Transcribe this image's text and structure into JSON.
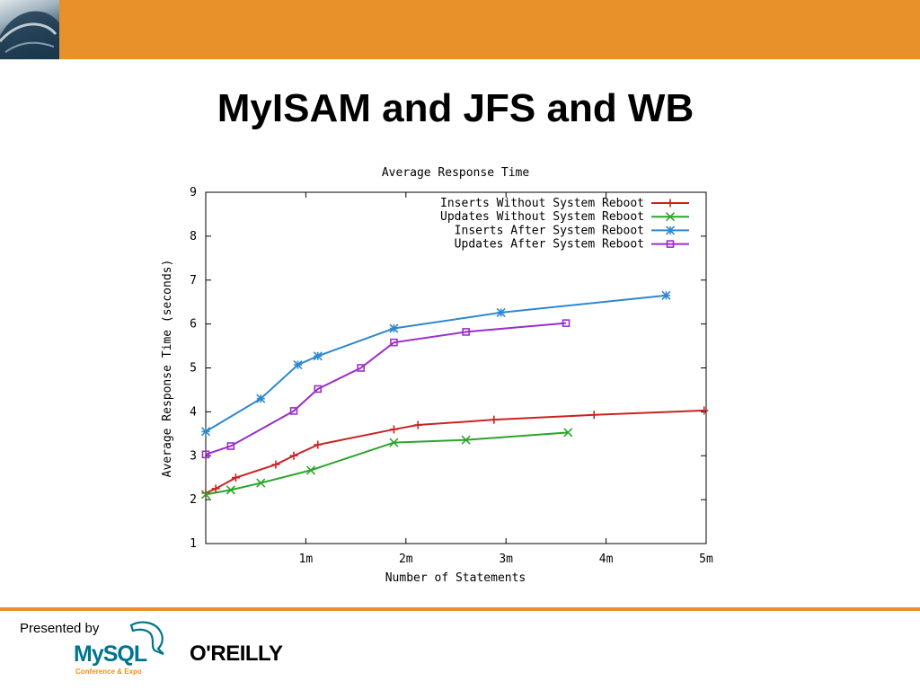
{
  "slide": {
    "title": "MyISAM and JFS and WB",
    "presented_by": "Presented by",
    "mysql_logo_text": "MySQL",
    "mysql_logo_sub": "Conference & Expo",
    "oreilly_logo_text": "O'REILLY"
  },
  "colors": {
    "banner": "#e8912b",
    "inserts_no_reboot": "#cc2222",
    "updates_no_reboot": "#2aa52a",
    "inserts_after_reboot": "#2f88cf",
    "updates_after_reboot": "#9a2fc9"
  },
  "chart_data": {
    "type": "line",
    "title": "Average Response Time",
    "xlabel": "Number of Statements",
    "ylabel": "Average Response Time (seconds)",
    "xlim": [
      0,
      5
    ],
    "ylim": [
      1,
      9
    ],
    "x_ticks": [
      1,
      2,
      3,
      4,
      5
    ],
    "x_tick_labels": [
      "1m",
      "2m",
      "3m",
      "4m",
      "5m"
    ],
    "y_ticks": [
      1,
      2,
      3,
      4,
      5,
      6,
      7,
      8,
      9
    ],
    "y_tick_labels": [
      "1",
      "2",
      "3",
      "4",
      "5",
      "6",
      "7",
      "8",
      "9"
    ],
    "grid": false,
    "legend_position": "top-right",
    "series": [
      {
        "name": "Inserts Without System Reboot",
        "color": "#cc2222",
        "marker": "plus",
        "x": [
          0.0,
          0.1,
          0.3,
          0.7,
          0.88,
          1.12,
          1.88,
          2.12,
          2.88,
          3.88,
          4.98
        ],
        "y": [
          2.15,
          2.25,
          2.5,
          2.8,
          3.0,
          3.25,
          3.6,
          3.7,
          3.82,
          3.93,
          4.03
        ]
      },
      {
        "name": "Updates Without System Reboot",
        "color": "#2aa52a",
        "marker": "cross",
        "x": [
          0.0,
          0.25,
          0.55,
          1.05,
          1.88,
          2.6,
          3.62
        ],
        "y": [
          2.12,
          2.22,
          2.38,
          2.67,
          3.3,
          3.36,
          3.53
        ]
      },
      {
        "name": "Inserts After System Reboot",
        "color": "#2f88cf",
        "marker": "star",
        "x": [
          0.0,
          0.55,
          0.92,
          1.12,
          1.88,
          2.95,
          4.6
        ],
        "y": [
          3.55,
          4.3,
          5.07,
          5.27,
          5.9,
          6.26,
          6.65
        ]
      },
      {
        "name": "Updates After System Reboot",
        "color": "#9a2fc9",
        "marker": "square",
        "x": [
          0.0,
          0.25,
          0.88,
          1.12,
          1.55,
          1.88,
          2.6,
          3.6
        ],
        "y": [
          3.03,
          3.22,
          4.02,
          4.52,
          5.0,
          5.58,
          5.82,
          6.02
        ]
      }
    ]
  }
}
